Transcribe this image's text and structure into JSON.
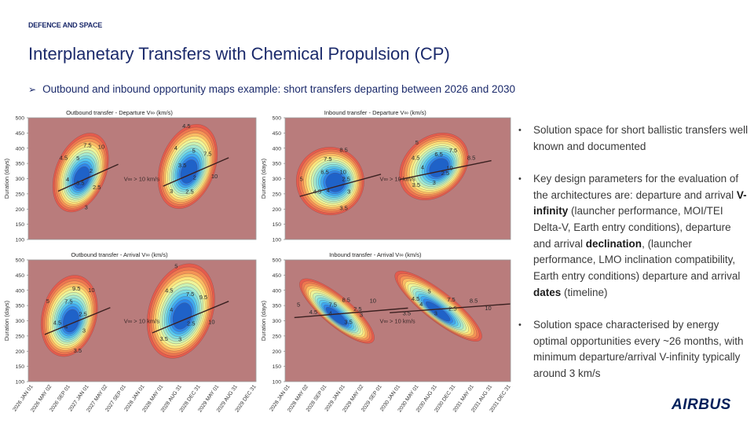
{
  "header": {
    "tag": "DEFENCE AND SPACE",
    "title": "Interplanetary Transfers with Chemical Propulsion (CP)",
    "bullet": "Outbound and inbound opportunity maps example: short transfers departing between 2026 and 2030"
  },
  "right_points": [
    {
      "parts": [
        {
          "t": "Solution space for short ballistic transfers well known and documented"
        }
      ]
    },
    {
      "parts": [
        {
          "t": "Key design parameters for the evaluation of the architectures are: departure and arrival "
        },
        {
          "t": "V-infinity",
          "b": true
        },
        {
          "t": " (launcher performance, MOI/TEI Delta-V, Earth entry conditions), departure and arrival "
        },
        {
          "t": "declination",
          "b": true
        },
        {
          "t": ", (launcher performance, LMO inclination compatibility, Earth entry conditions) departure and arrival "
        },
        {
          "t": "dates",
          "b": true
        },
        {
          "t": " (timeline)"
        }
      ]
    },
    {
      "parts": [
        {
          "t": "Solution space characterised by energy optimal opportunities every ~26 months, with minimum departure/arrival V-infinity typically around 3 km/s"
        }
      ]
    }
  ],
  "logo": "AIRBUS",
  "colors": {
    "title": "#1b2a6b",
    "background_region": "#b97c7c",
    "contour_scale": [
      "#1f62c8",
      "#2f86e8",
      "#3fa9f0",
      "#58c8ee",
      "#7fdde0",
      "#a6ead0",
      "#caf2b4",
      "#eef59a",
      "#fde47c",
      "#fbbc64",
      "#f59456",
      "#ee7650",
      "#e45c4e"
    ]
  },
  "chart_data": [
    {
      "type": "heatmap",
      "title": "Outbound transfer - Departure V∞ (km/s)",
      "ylabel": "Duration (days)",
      "ylim": [
        100,
        500
      ],
      "yticks": [
        100,
        150,
        200,
        250,
        300,
        350,
        400,
        450,
        500
      ],
      "x": [
        "2026 JAN 01",
        "2026 MAY 02",
        "2026 SEP 01",
        "2027 JAN 01",
        "2027 MAY 02",
        "2027 SEP 01",
        "2028 JAN 01",
        "2028 MAY 01",
        "2028 AUG 31",
        "2028 DEC 31",
        "2029 MAY 01",
        "2029 AUG 31",
        "2029 DEC 31"
      ],
      "region_label": "V∞ > 10 km/s",
      "contour_labels": [
        "2",
        "2.5",
        "3",
        "3.5",
        "4",
        "4.5",
        "5",
        "7.5",
        "10"
      ],
      "lobes": 2
    },
    {
      "type": "heatmap",
      "title": "Inbound transfer - Departure V∞ (km/s)",
      "ylabel": "Duration (days)",
      "ylim": [
        100,
        500
      ],
      "yticks": [
        100,
        150,
        200,
        250,
        300,
        350,
        400,
        450,
        500
      ],
      "x": [
        "2028 JAN 01",
        "2028 MAY 02",
        "2028 SEP 01",
        "2029 JAN 01",
        "2029 MAY 02",
        "2029 SEP 01",
        "2030 JAN 01",
        "2030 MAY 01",
        "2030 AUG 31",
        "2030 DEC 31",
        "2031 MAY 01",
        "2031 AUG 31",
        "2031 DEC 31"
      ],
      "region_label": "V∞ > 10 km/s",
      "contour_labels": [
        "2.5",
        "3",
        "3.5",
        "4",
        "4.5",
        "5",
        "6.5",
        "7.5",
        "8.5",
        "10"
      ],
      "lobes": 2
    },
    {
      "type": "heatmap",
      "title": "Outbound transfer - Arrival V∞ (km/s)",
      "ylabel": "Duration (days)",
      "ylim": [
        100,
        500
      ],
      "yticks": [
        100,
        150,
        200,
        250,
        300,
        350,
        400,
        450,
        500
      ],
      "x": [
        "2026 JAN 01",
        "2026 MAY 02",
        "2026 SEP 01",
        "2027 JAN 01",
        "2027 MAY 02",
        "2027 SEP 01",
        "2028 JAN 01",
        "2028 MAY 01",
        "2028 AUG 31",
        "2028 DEC 31",
        "2029 MAY 01",
        "2029 AUG 31",
        "2029 DEC 31"
      ],
      "region_label": "V∞ > 10 km/s",
      "contour_labels": [
        "2.5",
        "3",
        "3.5",
        "4",
        "4.5",
        "5",
        "7.5",
        "9.5",
        "10"
      ],
      "lobes": 2
    },
    {
      "type": "heatmap",
      "title": "Inbound transfer - Arrival V∞ (km/s)",
      "ylabel": "Duration (days)",
      "ylim": [
        100,
        500
      ],
      "yticks": [
        100,
        150,
        200,
        250,
        300,
        350,
        400,
        450,
        500
      ],
      "x": [
        "2028 JAN 01",
        "2028 MAY 02",
        "2028 SEP 01",
        "2029 JAN 01",
        "2029 MAY 02",
        "2029 SEP 01",
        "2030 JAN 01",
        "2030 MAY 01",
        "2030 AUG 31",
        "2030 DEC 31",
        "2031 MAY 01",
        "2031 AUG 31",
        "2031 DEC 31"
      ],
      "region_label": "V∞ > 10 km/s",
      "contour_labels": [
        "2.5",
        "3",
        "3.5",
        "4",
        "4.5",
        "5",
        "7.5",
        "8.5",
        "10"
      ],
      "lobes": 2
    }
  ]
}
